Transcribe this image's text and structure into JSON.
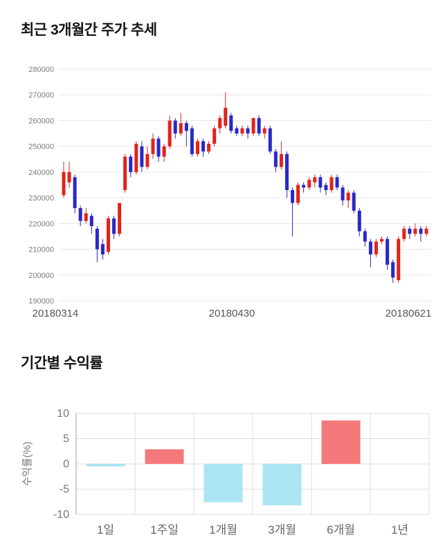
{
  "price_section": {
    "title": "최근 3개월간 주가 추세"
  },
  "returns_section": {
    "title": "기간별 수익률"
  },
  "chart_data": [
    {
      "type": "candlestick",
      "title": "최근 3개월간 주가 추세",
      "ylim": [
        190000,
        280000
      ],
      "y_ticks": [
        280000,
        270000,
        260000,
        250000,
        240000,
        230000,
        220000,
        210000,
        200000,
        190000
      ],
      "x_labels": [
        "20180314",
        "20180430",
        "20180621"
      ],
      "up_color": "#e0241b",
      "down_color": "#2929c8",
      "grid_color": "#e7e7e7",
      "candles": [
        [
          231000,
          244000,
          230000,
          240000
        ],
        [
          236000,
          244000,
          234000,
          240000
        ],
        [
          238000,
          239000,
          224000,
          226000
        ],
        [
          226000,
          227000,
          219000,
          221000
        ],
        [
          221000,
          226000,
          220000,
          224000
        ],
        [
          223000,
          224000,
          216000,
          219000
        ],
        [
          218000,
          219000,
          205000,
          210000
        ],
        [
          212000,
          214000,
          206000,
          208000
        ],
        [
          209000,
          223000,
          208000,
          222000
        ],
        [
          222000,
          223000,
          214000,
          216000
        ],
        [
          216000,
          228000,
          215000,
          228000
        ],
        [
          233000,
          247000,
          232000,
          246000
        ],
        [
          246000,
          247000,
          238000,
          240000
        ],
        [
          240000,
          252000,
          239000,
          251000
        ],
        [
          250000,
          252000,
          240000,
          242000
        ],
        [
          242000,
          250000,
          241000,
          247000
        ],
        [
          247000,
          255000,
          245000,
          253000
        ],
        [
          253000,
          254000,
          244000,
          246000
        ],
        [
          246000,
          251000,
          244000,
          250000
        ],
        [
          250000,
          262000,
          249000,
          260000
        ],
        [
          260000,
          261000,
          253000,
          255000
        ],
        [
          255000,
          263000,
          254000,
          259000
        ],
        [
          259000,
          260000,
          250000,
          256000
        ],
        [
          257000,
          258000,
          246000,
          247000
        ],
        [
          247000,
          253000,
          246000,
          252000
        ],
        [
          252000,
          253000,
          246000,
          248000
        ],
        [
          248000,
          252000,
          247000,
          251000
        ],
        [
          251000,
          258000,
          250000,
          257000
        ],
        [
          257000,
          262000,
          255000,
          261000
        ],
        [
          258000,
          271000,
          257000,
          265000
        ],
        [
          262000,
          263000,
          255000,
          256000
        ],
        [
          257000,
          258000,
          254000,
          255000
        ],
        [
          255000,
          258000,
          254000,
          257000
        ],
        [
          257000,
          258000,
          253000,
          255000
        ],
        [
          255000,
          261000,
          254000,
          261000
        ],
        [
          261000,
          262000,
          254000,
          255000
        ],
        [
          255000,
          258000,
          253000,
          257000
        ],
        [
          257000,
          258000,
          247000,
          248000
        ],
        [
          248000,
          249000,
          240000,
          242000
        ],
        [
          242000,
          252000,
          241000,
          247000
        ],
        [
          247000,
          248000,
          230000,
          233000
        ],
        [
          233000,
          234000,
          215000,
          228000
        ],
        [
          228000,
          236000,
          227000,
          235000
        ],
        [
          235000,
          236000,
          232000,
          234000
        ],
        [
          234000,
          238000,
          233000,
          237000
        ],
        [
          236000,
          239000,
          234000,
          238000
        ],
        [
          238000,
          239000,
          232000,
          234000
        ],
        [
          235000,
          236000,
          231000,
          233000
        ],
        [
          233000,
          239000,
          232000,
          238000
        ],
        [
          238000,
          239000,
          233000,
          234000
        ],
        [
          234000,
          235000,
          227000,
          229000
        ],
        [
          229000,
          233000,
          226000,
          232000
        ],
        [
          232000,
          233000,
          224000,
          225000
        ],
        [
          225000,
          226000,
          215000,
          217000
        ],
        [
          217000,
          218000,
          211000,
          213000
        ],
        [
          213000,
          214000,
          203000,
          208000
        ],
        [
          208000,
          214000,
          207000,
          213000
        ],
        [
          213000,
          215000,
          212000,
          214000
        ],
        [
          214000,
          215000,
          202000,
          204000
        ],
        [
          205000,
          206000,
          197000,
          199000
        ],
        [
          198000,
          215000,
          197000,
          214000
        ],
        [
          214000,
          219000,
          213000,
          218000
        ],
        [
          218000,
          219000,
          214000,
          216000
        ],
        [
          216000,
          220000,
          215000,
          218000
        ],
        [
          218000,
          219000,
          213000,
          216000
        ],
        [
          216000,
          219000,
          215000,
          218000
        ]
      ]
    },
    {
      "type": "bar",
      "title": "기간별 수익률",
      "ylabel": "수익률(%)",
      "categories": [
        "1일",
        "1주일",
        "1개월",
        "3개월",
        "6개월",
        "1년"
      ],
      "values": [
        -0.5,
        2.9,
        -7.6,
        -8.2,
        8.6,
        0
      ],
      "ylim": [
        -10,
        10
      ],
      "y_ticks": [
        10,
        5,
        0,
        -5,
        -10
      ],
      "positive_color": "#f4797b",
      "negative_color": "#abe4f2",
      "grid_color": "#dcdcdc",
      "axis_color": "#a0a0a0"
    }
  ]
}
